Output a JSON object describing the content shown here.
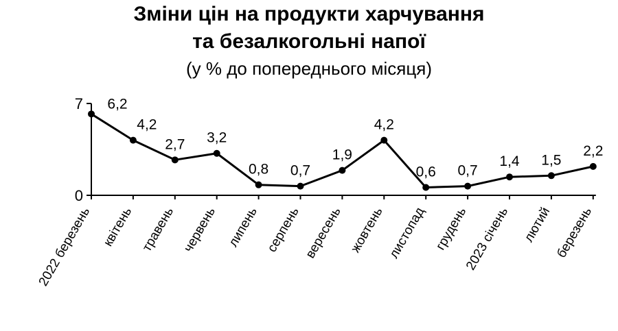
{
  "chart_data": {
    "type": "line",
    "title_line1": "Зміни цін на продукти харчування",
    "title_line2": "та безалкогольні напої",
    "subtitle": "(у % до попереднього місяця)",
    "categories": [
      "2022 березень",
      "квітень",
      "травень",
      "червень",
      "липень",
      "серпень",
      "вересень",
      "жовтень",
      "листопад",
      "грудень",
      "2023 січень",
      "лютий",
      "березень"
    ],
    "values": [
      6.2,
      4.2,
      2.7,
      3.2,
      0.8,
      0.7,
      1.9,
      4.2,
      0.6,
      0.7,
      1.4,
      1.5,
      2.2
    ],
    "value_labels": [
      "6,2",
      "4,2",
      "2,7",
      "3,2",
      "0,8",
      "0,7",
      "1,9",
      "4,2",
      "0,6",
      "0,7",
      "1,4",
      "1,5",
      "2,2"
    ],
    "y_ticks": [
      "0",
      "7"
    ],
    "ylim": [
      0,
      7
    ],
    "xlabel": "",
    "ylabel": "",
    "grid": false,
    "legend": "none",
    "colors": {
      "line": "#000000",
      "marker": "#000000"
    }
  }
}
